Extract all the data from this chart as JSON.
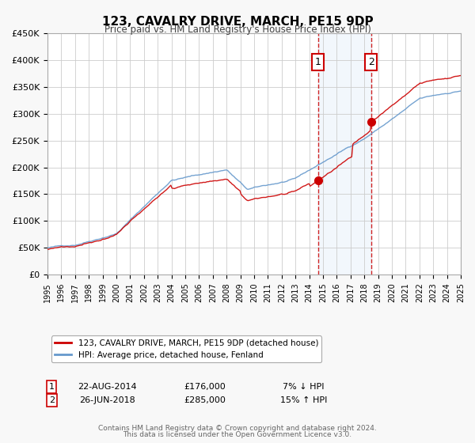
{
  "title": "123, CAVALRY DRIVE, MARCH, PE15 9DP",
  "subtitle": "Price paid vs. HM Land Registry's House Price Index (HPI)",
  "red_label": "123, CAVALRY DRIVE, MARCH, PE15 9DP (detached house)",
  "blue_label": "HPI: Average price, detached house, Fenland",
  "annotation1_date": "22-AUG-2014",
  "annotation1_price": "£176,000",
  "annotation1_hpi": "7% ↓ HPI",
  "annotation2_date": "26-JUN-2018",
  "annotation2_price": "£285,000",
  "annotation2_hpi": "15% ↑ HPI",
  "sale1_x": 2014.64,
  "sale1_y": 176000,
  "sale2_x": 2018.49,
  "sale2_y": 285000,
  "shade_xmin": 2014.64,
  "shade_xmax": 2018.49,
  "ylim": [
    0,
    450000
  ],
  "xlim_min": 1995,
  "xlim_max": 2025,
  "yticks": [
    0,
    50000,
    100000,
    150000,
    200000,
    250000,
    300000,
    350000,
    400000,
    450000
  ],
  "footer1": "Contains HM Land Registry data © Crown copyright and database right 2024.",
  "footer2": "This data is licensed under the Open Government Licence v3.0.",
  "background_color": "#f8f8f8",
  "plot_bg_color": "#ffffff",
  "grid_color": "#cccccc",
  "red_color": "#cc0000",
  "blue_color": "#6699cc"
}
